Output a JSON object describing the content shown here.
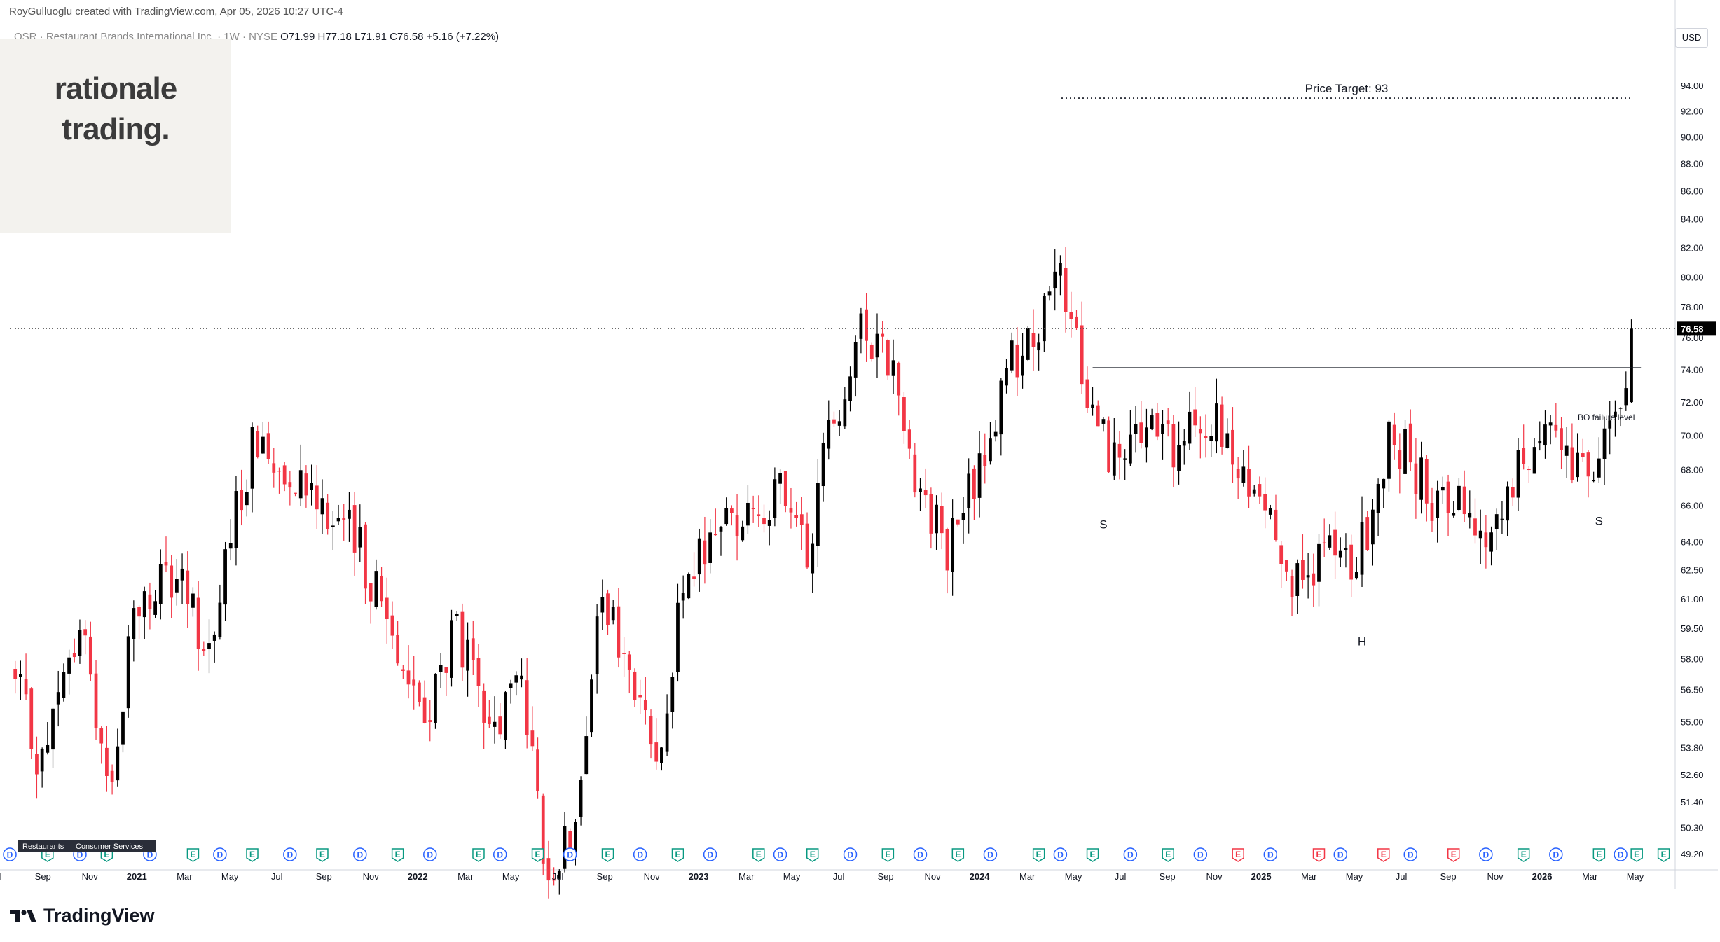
{
  "header": {
    "created_by": "RoyGulluoglu created with TradingView.com,",
    "created_at": "Apr 05, 2026 10:27 UTC-4",
    "symbol_desc": "QSR · Restaurant Brands International Inc. · 1W · NYSE",
    "ohlc": "O71.99 H77.18 L71.91 C76.58 +5.16 (+7.22%)"
  },
  "logo": {
    "line1": "rationale",
    "line2": "trading."
  },
  "currency": "USD",
  "brand": "TradingView",
  "colors": {
    "up": "#000000",
    "down": "#f23645",
    "price_label_bg": "#000000",
    "dividend": "#2962ff",
    "earnings_up": "#089981",
    "earnings_down": "#f23645"
  },
  "chart_data": {
    "type": "candlestick",
    "interval": "1W",
    "symbol": "QSR",
    "x_ticks": [
      "Jul",
      "Sep",
      "Nov",
      "2021",
      "Mar",
      "May",
      "Jul",
      "Sep",
      "Nov",
      "2022",
      "Mar",
      "May",
      "Jul",
      "Sep",
      "Nov",
      "2023",
      "Mar",
      "May",
      "Jul",
      "Sep",
      "Nov",
      "2024",
      "Mar",
      "May",
      "Jul",
      "Sep",
      "Nov",
      "2025",
      "Mar",
      "May",
      "Jul",
      "Sep",
      "Nov",
      "2026",
      "Mar",
      "May"
    ],
    "y_scale": "log",
    "y_ticks": [
      "94.00",
      "92.00",
      "90.00",
      "88.00",
      "86.00",
      "84.00",
      "82.00",
      "80.00",
      "78.00",
      "76.00",
      "74.00",
      "72.00",
      "70.00",
      "68.00",
      "66.00",
      "64.00",
      "62.50",
      "61.00",
      "59.50",
      "58.00",
      "56.50",
      "55.00",
      "53.80",
      "52.60",
      "51.40",
      "50.30",
      "49.20"
    ],
    "ylim": [
      48.6,
      97.5
    ],
    "last_price": "76.58",
    "price_target_label": "Price Target: 93",
    "price_target": 93,
    "neckline": 74.1,
    "neckline_label": "BO failure level",
    "pattern_labels": [
      "S",
      "H",
      "S"
    ],
    "anchors": [
      [
        "2020-06-26",
        57.5
      ],
      [
        "2020-08-07",
        53.0
      ],
      [
        "2020-09-25",
        59.5
      ],
      [
        "2020-11-06",
        52.0
      ],
      [
        "2020-12-04",
        60.5
      ],
      [
        "2021-01-29",
        62.0
      ],
      [
        "2021-03-12",
        58.5
      ],
      [
        "2021-05-07",
        69.5
      ],
      [
        "2021-06-11",
        68.5
      ],
      [
        "2021-07-09",
        68.0
      ],
      [
        "2021-08-13",
        66.0
      ],
      [
        "2021-09-24",
        63.5
      ],
      [
        "2021-11-05",
        59.5
      ],
      [
        "2021-12-17",
        55.0
      ],
      [
        "2022-01-28",
        59.5
      ],
      [
        "2022-03-11",
        54.0
      ],
      [
        "2022-04-22",
        57.5
      ],
      [
        "2022-05-20",
        48.6
      ],
      [
        "2022-06-24",
        49.8
      ],
      [
        "2022-08-05",
        60.8
      ],
      [
        "2022-09-23",
        55.5
      ],
      [
        "2022-10-14",
        53.5
      ],
      [
        "2022-11-18",
        61.0
      ],
      [
        "2022-12-30",
        65.0
      ],
      [
        "2023-02-10",
        65.5
      ],
      [
        "2023-03-24",
        66.5
      ],
      [
        "2023-04-28",
        63.0
      ],
      [
        "2023-05-26",
        70.5
      ],
      [
        "2023-07-07",
        76.0
      ],
      [
        "2023-08-04",
        76.5
      ],
      [
        "2023-09-22",
        66.8
      ],
      [
        "2023-10-27",
        63.5
      ],
      [
        "2023-12-08",
        68.0
      ],
      [
        "2024-01-19",
        74.5
      ],
      [
        "2024-02-16",
        76.0
      ],
      [
        "2024-03-22",
        79.5
      ],
      [
        "2024-05-03",
        71.5
      ],
      [
        "2024-06-07",
        68.0
      ],
      [
        "2024-07-19",
        70.5
      ],
      [
        "2024-08-16",
        69.0
      ],
      [
        "2024-10-04",
        71.0
      ],
      [
        "2024-11-15",
        67.0
      ],
      [
        "2024-12-20",
        66.0
      ],
      [
        "2025-01-24",
        61.5
      ],
      [
        "2025-02-28",
        63.5
      ],
      [
        "2025-04-11",
        62.5
      ],
      [
        "2025-05-23",
        69.5
      ],
      [
        "2025-06-13",
        69.0
      ],
      [
        "2025-07-25",
        66.0
      ],
      [
        "2025-08-22",
        67.0
      ],
      [
        "2025-09-26",
        64.0
      ],
      [
        "2025-10-31",
        67.0
      ],
      [
        "2025-12-12",
        71.5
      ],
      [
        "2026-01-16",
        68.0
      ],
      [
        "2026-02-13",
        66.5
      ],
      [
        "2026-03-06",
        72.5
      ],
      [
        "2026-03-20",
        72.0
      ],
      [
        "2026-04-03",
        76.58
      ]
    ],
    "events": [
      {
        "date": "2020-06-19",
        "type": "D"
      },
      {
        "date": "2020-08-07",
        "type": "E"
      },
      {
        "date": "2020-09-18",
        "type": "D"
      },
      {
        "date": "2020-10-23",
        "type": "E"
      },
      {
        "date": "2020-12-18",
        "type": "D"
      },
      {
        "date": "2021-02-12",
        "type": "E"
      },
      {
        "date": "2021-03-19",
        "type": "D"
      },
      {
        "date": "2021-04-30",
        "type": "E"
      },
      {
        "date": "2021-06-18",
        "type": "D"
      },
      {
        "date": "2021-07-30",
        "type": "E"
      },
      {
        "date": "2021-09-17",
        "type": "D"
      },
      {
        "date": "2021-11-05",
        "type": "E"
      },
      {
        "date": "2021-12-17",
        "type": "D"
      },
      {
        "date": "2022-02-18",
        "type": "E"
      },
      {
        "date": "2022-03-18",
        "type": "D"
      },
      {
        "date": "2022-05-06",
        "type": "E"
      },
      {
        "date": "2022-06-17",
        "type": "D"
      },
      {
        "date": "2022-08-05",
        "type": "E"
      },
      {
        "date": "2022-09-16",
        "type": "D"
      },
      {
        "date": "2022-11-04",
        "type": "E"
      },
      {
        "date": "2022-12-16",
        "type": "D"
      },
      {
        "date": "2023-02-17",
        "type": "E"
      },
      {
        "date": "2023-03-17",
        "type": "D"
      },
      {
        "date": "2023-04-28",
        "type": "E"
      },
      {
        "date": "2023-06-16",
        "type": "D"
      },
      {
        "date": "2023-08-04",
        "type": "E"
      },
      {
        "date": "2023-09-15",
        "type": "D"
      },
      {
        "date": "2023-11-03",
        "type": "E"
      },
      {
        "date": "2023-12-15",
        "type": "D"
      },
      {
        "date": "2024-02-16",
        "type": "E"
      },
      {
        "date": "2024-03-15",
        "type": "D"
      },
      {
        "date": "2024-04-26",
        "type": "E"
      },
      {
        "date": "2024-06-14",
        "type": "D"
      },
      {
        "date": "2024-08-02",
        "type": "E"
      },
      {
        "date": "2024-09-13",
        "type": "D"
      },
      {
        "date": "2024-11-01",
        "type": "E"
      },
      {
        "date": "2024-12-13",
        "type": "D"
      },
      {
        "date": "2025-02-14",
        "type": "E"
      },
      {
        "date": "2025-03-14",
        "type": "D"
      },
      {
        "date": "2025-05-09",
        "type": "E"
      },
      {
        "date": "2025-06-13",
        "type": "D"
      },
      {
        "date": "2025-08-08",
        "type": "E"
      },
      {
        "date": "2025-09-19",
        "type": "D"
      },
      {
        "date": "2025-11-07",
        "type": "E"
      },
      {
        "date": "2025-12-19",
        "type": "D"
      },
      {
        "date": "2026-02-13",
        "type": "E"
      },
      {
        "date": "2026-03-13",
        "type": "D"
      },
      {
        "date": "2026-04-03",
        "type": "E"
      },
      {
        "date": "2026-05-08",
        "type": "E"
      }
    ],
    "tags": [
      "Restaurants",
      "Consumer Services"
    ]
  }
}
